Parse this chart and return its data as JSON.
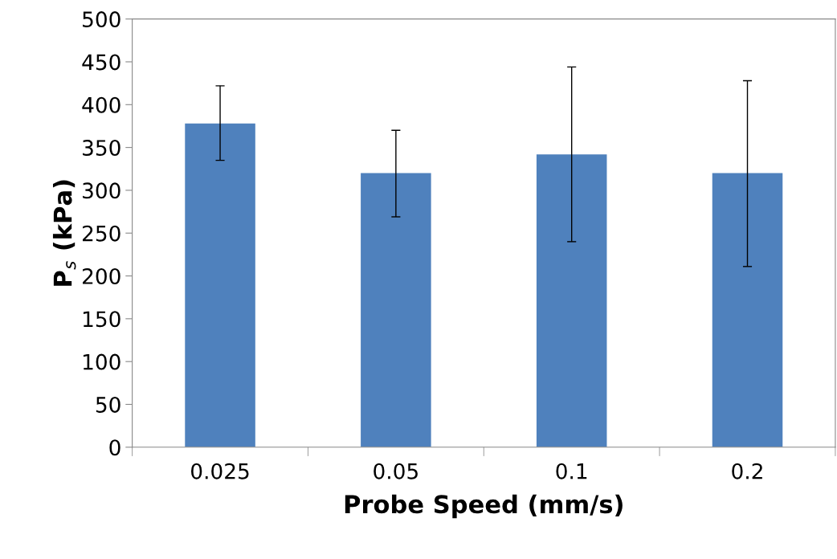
{
  "chart_data": {
    "type": "bar",
    "xlabel": "Probe Speed (mm/s)",
    "ylabel": "P$_{s}$ (kPa)",
    "categories": [
      "0.025",
      "0.05",
      "0.1",
      "0.2"
    ],
    "values": [
      378,
      320,
      342,
      320
    ],
    "errors": [
      [
        335,
        422
      ],
      [
        269,
        370
      ],
      [
        240,
        444
      ],
      [
        211,
        428
      ]
    ],
    "color": "#4f81bd",
    "ylim": [
      0,
      500
    ],
    "yticks": [
      0,
      50,
      100,
      150,
      200,
      250,
      300,
      350,
      400,
      450,
      500
    ],
    "grid": false,
    "legend": false
  }
}
